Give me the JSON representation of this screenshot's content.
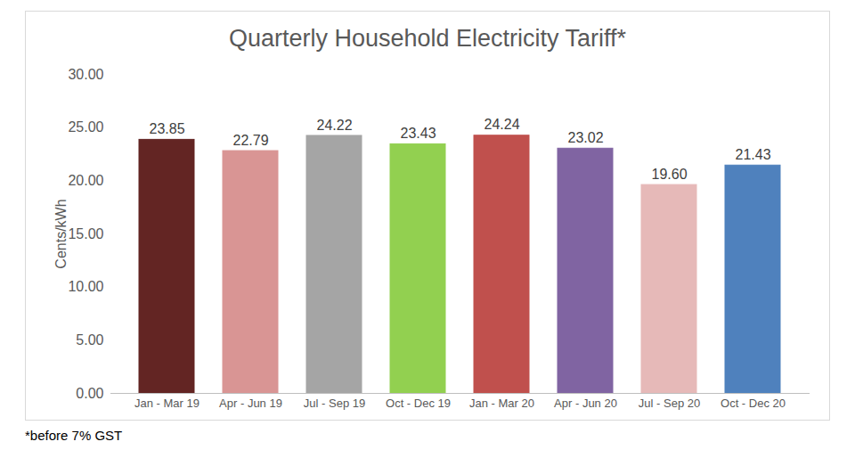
{
  "chart_data": {
    "type": "bar",
    "title": "Quarterly Household Electricity Tariff*",
    "caption": "*before 7% GST",
    "y_label": "Cents/kWh",
    "categories": [
      "Jan - Mar 19",
      "Apr - Jun 19",
      "Jul - Sep 19",
      "Oct - Dec 19",
      "Jan - Mar 20",
      "Apr - Jun 20",
      "Jul - Sep 20",
      "Oct - Dec 20"
    ],
    "values": [
      23.85,
      22.79,
      24.22,
      23.43,
      24.24,
      23.02,
      19.6,
      21.43
    ],
    "value_labels": [
      "23.85",
      "22.79",
      "24.22",
      "23.43",
      "24.24",
      "23.02",
      "19.60",
      "21.43"
    ],
    "colors": [
      "#632523",
      "#d99594",
      "#a5a5a5",
      "#92d050",
      "#c0504d",
      "#8064a2",
      "#e6b9b8",
      "#4f81bd"
    ],
    "ylim": [
      0,
      30
    ],
    "yticks": [
      {
        "value": 0,
        "label": "0.00"
      },
      {
        "value": 5,
        "label": "5.00"
      },
      {
        "value": 10,
        "label": "10.00"
      },
      {
        "value": 15,
        "label": "15.00"
      },
      {
        "value": 20,
        "label": "20.00"
      },
      {
        "value": 25,
        "label": "25.00"
      },
      {
        "value": 30,
        "label": "30.00"
      }
    ],
    "grid": false,
    "data_labels": true
  }
}
